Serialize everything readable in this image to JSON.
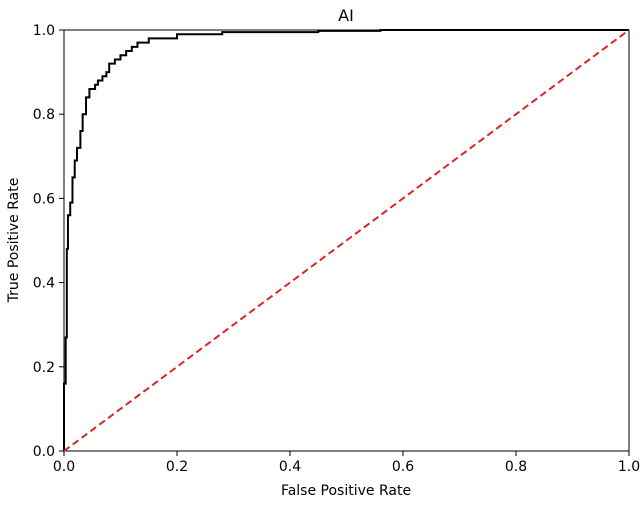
{
  "chart_data": {
    "type": "line",
    "title": "AI",
    "xlabel": "False Positive Rate",
    "ylabel": "True Positive Rate",
    "xlim": [
      0.0,
      1.0
    ],
    "ylim": [
      0.0,
      1.0
    ],
    "xticks": [
      "0.0",
      "0.2",
      "0.4",
      "0.6",
      "0.8",
      "1.0"
    ],
    "yticks": [
      "0.0",
      "0.2",
      "0.4",
      "0.6",
      "0.8",
      "1.0"
    ],
    "grid": false,
    "legend": "none",
    "series": [
      {
        "kind": "roc-curve",
        "color": "#000000",
        "linestyle": "solid",
        "points": [
          [
            0.0,
            0.0
          ],
          [
            0.0,
            0.16
          ],
          [
            0.003,
            0.16
          ],
          [
            0.003,
            0.27
          ],
          [
            0.005,
            0.27
          ],
          [
            0.005,
            0.48
          ],
          [
            0.007,
            0.48
          ],
          [
            0.007,
            0.56
          ],
          [
            0.011,
            0.56
          ],
          [
            0.011,
            0.59
          ],
          [
            0.015,
            0.59
          ],
          [
            0.015,
            0.65
          ],
          [
            0.019,
            0.65
          ],
          [
            0.019,
            0.69
          ],
          [
            0.023,
            0.69
          ],
          [
            0.023,
            0.72
          ],
          [
            0.029,
            0.72
          ],
          [
            0.029,
            0.76
          ],
          [
            0.033,
            0.76
          ],
          [
            0.033,
            0.8
          ],
          [
            0.039,
            0.8
          ],
          [
            0.039,
            0.84
          ],
          [
            0.045,
            0.84
          ],
          [
            0.045,
            0.86
          ],
          [
            0.055,
            0.86
          ],
          [
            0.055,
            0.87
          ],
          [
            0.06,
            0.87
          ],
          [
            0.06,
            0.88
          ],
          [
            0.068,
            0.88
          ],
          [
            0.068,
            0.89
          ],
          [
            0.075,
            0.89
          ],
          [
            0.075,
            0.9
          ],
          [
            0.08,
            0.9
          ],
          [
            0.08,
            0.92
          ],
          [
            0.09,
            0.92
          ],
          [
            0.09,
            0.93
          ],
          [
            0.1,
            0.93
          ],
          [
            0.1,
            0.94
          ],
          [
            0.11,
            0.94
          ],
          [
            0.11,
            0.95
          ],
          [
            0.12,
            0.95
          ],
          [
            0.12,
            0.96
          ],
          [
            0.13,
            0.96
          ],
          [
            0.13,
            0.97
          ],
          [
            0.15,
            0.97
          ],
          [
            0.15,
            0.98
          ],
          [
            0.2,
            0.98
          ],
          [
            0.2,
            0.99
          ],
          [
            0.28,
            0.99
          ],
          [
            0.28,
            0.995
          ],
          [
            0.45,
            0.995
          ],
          [
            0.45,
            0.998
          ],
          [
            0.56,
            0.998
          ],
          [
            0.56,
            1.0
          ],
          [
            1.0,
            1.0
          ]
        ]
      },
      {
        "kind": "chance-diagonal",
        "color": "#d62728",
        "linestyle": "dashed",
        "points": [
          [
            0.0,
            0.0
          ],
          [
            1.0,
            1.0
          ]
        ]
      }
    ]
  }
}
